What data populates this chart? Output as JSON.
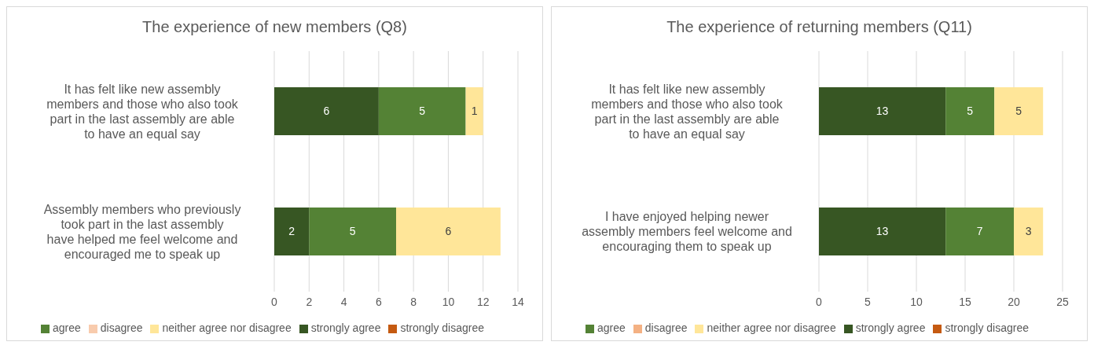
{
  "chart_data": [
    {
      "type": "bar",
      "orientation": "horizontal",
      "stacked": true,
      "title": "The experience of new members (Q8)",
      "categories": [
        "It has felt like new assembly members and those who also took part in the last assembly are able to have an equal say",
        "Assembly members who previously took part in the last assembly have helped me feel welcome and encouraged me to speak up"
      ],
      "series": [
        {
          "name": "strongly agree",
          "color": "#375623",
          "values": [
            6,
            2
          ],
          "value_labels": [
            "6",
            "2"
          ]
        },
        {
          "name": "agree",
          "color": "#548235",
          "values": [
            5,
            5
          ],
          "value_labels": [
            "5",
            "5"
          ]
        },
        {
          "name": "neither agree nor disagree",
          "color": "#ffe699",
          "values": [
            1,
            6
          ],
          "value_labels": [
            "1",
            "6"
          ]
        },
        {
          "name": "disagree",
          "color": "#f8cbad",
          "values": [
            0,
            0
          ],
          "value_labels": [
            null,
            null
          ]
        },
        {
          "name": "strongly disagree",
          "color": "#c55a11",
          "values": [
            0,
            0
          ],
          "value_labels": [
            null,
            null
          ]
        }
      ],
      "xlim": [
        0,
        14
      ],
      "xticks": [
        0,
        2,
        4,
        6,
        8,
        10,
        12,
        14
      ],
      "grid": "x",
      "legend": "bottom"
    },
    {
      "type": "bar",
      "orientation": "horizontal",
      "stacked": true,
      "title": "The experience of returning members (Q11)",
      "categories": [
        "It has felt like new assembly members and those who also took part in the last assembly are able to have an equal say",
        "I have enjoyed helping newer assembly members feel welcome and encouraging them to speak up"
      ],
      "series": [
        {
          "name": "strongly agree",
          "color": "#375623",
          "values": [
            13,
            13
          ],
          "value_labels": [
            "13",
            "13"
          ]
        },
        {
          "name": "agree",
          "color": "#548235",
          "values": [
            5,
            7
          ],
          "value_labels": [
            "5",
            "7"
          ]
        },
        {
          "name": "neither agree nor disagree",
          "color": "#ffe699",
          "values": [
            5,
            3
          ],
          "value_labels": [
            "5",
            "3"
          ]
        },
        {
          "name": "disagree",
          "color": "#f4b183",
          "values": [
            0,
            0
          ],
          "value_labels": [
            null,
            null
          ]
        },
        {
          "name": "strongly disagree",
          "color": "#c55a11",
          "values": [
            0,
            0
          ],
          "value_labels": [
            null,
            null
          ]
        }
      ],
      "xlim": [
        0,
        25
      ],
      "xticks": [
        0,
        5,
        10,
        15,
        20,
        25
      ],
      "grid": "x",
      "legend": "bottom"
    }
  ]
}
